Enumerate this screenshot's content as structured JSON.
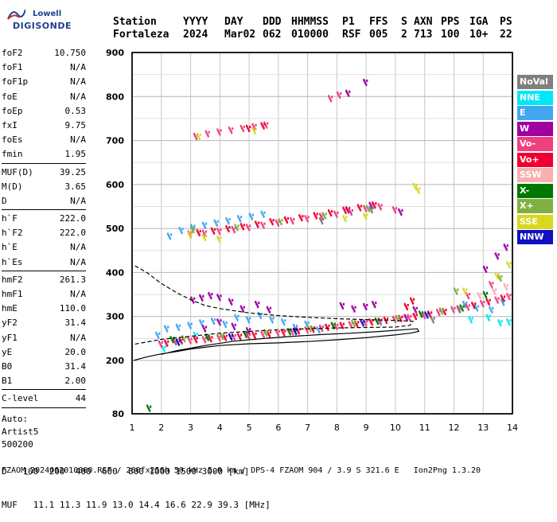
{
  "logo": {
    "line1": "Lowell",
    "line2": "DIGISONDE"
  },
  "header": {
    "col_labels": [
      "Station",
      "YYYY",
      "DAY",
      "DDD",
      "HHMMSS",
      "P1",
      "FFS",
      "S",
      "AXN",
      "PPS",
      "IGA",
      "PS"
    ],
    "col_values": [
      "Fortaleza",
      "2024",
      "Mar02",
      "062",
      "010000",
      "RSF",
      "005",
      "2",
      "713",
      "100",
      "10+",
      "22"
    ]
  },
  "params": {
    "group1": [
      {
        "label": "foF2",
        "value": "10.750"
      },
      {
        "label": "foF1",
        "value": "N/A"
      },
      {
        "label": "foF1p",
        "value": "N/A"
      },
      {
        "label": "foE",
        "value": "N/A"
      },
      {
        "label": "foEp",
        "value": "0.53"
      },
      {
        "label": "fxI",
        "value": "9.75"
      },
      {
        "label": "foEs",
        "value": "N/A"
      },
      {
        "label": "fmin",
        "value": "1.95"
      }
    ],
    "group2": [
      {
        "label": "MUF(D)",
        "value": "39.25"
      },
      {
        "label": "M(D)",
        "value": "3.65"
      },
      {
        "label": "D",
        "value": "N/A"
      }
    ],
    "group3": [
      {
        "label": "h`F",
        "value": "222.0"
      },
      {
        "label": "h`F2",
        "value": "222.0"
      },
      {
        "label": "h`E",
        "value": "N/A"
      },
      {
        "label": "h`Es",
        "value": "N/A"
      }
    ],
    "group4": [
      {
        "label": "hmF2",
        "value": "261.3"
      },
      {
        "label": "hmF1",
        "value": "N/A"
      },
      {
        "label": "hmE",
        "value": "110.0"
      },
      {
        "label": "yF2",
        "value": "31.4"
      },
      {
        "label": "yF1",
        "value": "N/A"
      },
      {
        "label": "yE",
        "value": "20.0"
      },
      {
        "label": "B0",
        "value": "31.4"
      },
      {
        "label": "B1",
        "value": "2.00"
      }
    ],
    "c_level": {
      "label": "C-level",
      "value": "44"
    },
    "auto_label": "Auto:",
    "autoscaler": "Artist5",
    "autoscaler_version": "500200"
  },
  "legend": [
    {
      "label": "NoVal",
      "color": "#808080"
    },
    {
      "label": "NNE",
      "color": "#00e8f8"
    },
    {
      "label": "E",
      "color": "#40a8f0"
    },
    {
      "label": "W",
      "color": "#a000a0"
    },
    {
      "label": "Vo-",
      "color": "#f04080"
    },
    {
      "label": "Vo+",
      "color": "#f00030"
    },
    {
      "label": "SSW",
      "color": "#f8b0b0"
    },
    {
      "label": "X-",
      "color": "#007800"
    },
    {
      "label": "X+",
      "color": "#80b040"
    },
    {
      "label": "SSE",
      "color": "#d8d820"
    },
    {
      "label": "NNW",
      "color": "#1010c0"
    }
  ],
  "bottom": {
    "d_label": "D",
    "d_values": [
      "100",
      "200",
      "400",
      "600",
      "800",
      "1000",
      "1500",
      "3000"
    ],
    "d_unit": "[km]",
    "muf_label": "MUF",
    "muf_values": [
      "11.1",
      "11.3",
      "11.9",
      "13.0",
      "14.4",
      "16.6",
      "22.9",
      "39.3"
    ],
    "muf_unit": "[MHz]"
  },
  "footer": "FZAOM_2024062010000.RSF / 260fx256h 50 kHz 5.0 km / DPS-4 FZAOM 904 / 3.9 S 321.6 E   Ion2Png 1.3.20",
  "chart_data": {
    "type": "scatter",
    "x_ticks": [
      "1",
      "2",
      "3",
      "4",
      "5",
      "6",
      "7",
      "8",
      "9",
      "10",
      "11",
      "12",
      "13",
      "14"
    ],
    "y_ticks": [
      "80",
      "200",
      "300",
      "400",
      "500",
      "600",
      "700",
      "800",
      "900"
    ],
    "xlim": [
      1,
      14
    ],
    "ylim": [
      80,
      900
    ],
    "grid": true,
    "series": [
      {
        "name": "NNE",
        "color": "#00e8f8",
        "points": [
          [
            2.1,
            230
          ],
          [
            2.5,
            246
          ],
          [
            3.2,
            260
          ],
          [
            12.6,
            295
          ],
          [
            13.2,
            300
          ],
          [
            13.6,
            288
          ],
          [
            13.9,
            290
          ]
        ]
      },
      {
        "name": "E",
        "color": "#40a8f0",
        "points": [
          [
            1.9,
            260
          ],
          [
            2.2,
            275
          ],
          [
            2.6,
            278
          ],
          [
            3.0,
            282
          ],
          [
            3.4,
            288
          ],
          [
            3.8,
            292
          ],
          [
            4.2,
            285
          ],
          [
            4.6,
            300
          ],
          [
            5.0,
            295
          ],
          [
            5.4,
            305
          ],
          [
            5.8,
            295
          ],
          [
            6.2,
            290
          ],
          [
            6.6,
            278
          ],
          [
            7.0,
            285
          ],
          [
            7.4,
            272
          ],
          [
            2.3,
            485
          ],
          [
            2.7,
            498
          ],
          [
            3.1,
            505
          ],
          [
            3.5,
            510
          ],
          [
            3.9,
            515
          ],
          [
            4.3,
            520
          ],
          [
            4.7,
            525
          ],
          [
            5.1,
            530
          ],
          [
            5.5,
            535
          ],
          [
            9.5,
            290
          ],
          [
            12.4,
            330
          ],
          [
            12.8,
            322
          ],
          [
            13.3,
            318
          ],
          [
            13.7,
            335
          ]
        ]
      },
      {
        "name": "W",
        "color": "#a000a0",
        "points": [
          [
            3.1,
            340
          ],
          [
            3.4,
            345
          ],
          [
            3.7,
            350
          ],
          [
            4.0,
            346
          ],
          [
            4.4,
            336
          ],
          [
            4.8,
            320
          ],
          [
            5.3,
            330
          ],
          [
            5.7,
            318
          ],
          [
            8.2,
            327
          ],
          [
            8.6,
            320
          ],
          [
            9.0,
            325
          ],
          [
            9.3,
            330
          ],
          [
            10.4,
            300
          ],
          [
            10.7,
            318
          ],
          [
            3.5,
            275
          ],
          [
            4.0,
            290
          ],
          [
            4.5,
            280
          ],
          [
            5.0,
            270
          ],
          [
            7.5,
            530
          ],
          [
            8.4,
            545
          ],
          [
            9.2,
            555
          ],
          [
            10.2,
            540
          ],
          [
            13.1,
            410
          ],
          [
            13.5,
            440
          ],
          [
            13.8,
            460
          ],
          [
            9.0,
            835
          ],
          [
            8.4,
            810
          ]
        ]
      },
      {
        "name": "Vo-",
        "color": "#f04080",
        "points": [
          [
            2.0,
            240
          ],
          [
            2.5,
            245
          ],
          [
            3.0,
            248
          ],
          [
            3.5,
            250
          ],
          [
            4.0,
            254
          ],
          [
            4.5,
            256
          ],
          [
            5.0,
            258
          ],
          [
            5.5,
            262
          ],
          [
            6.0,
            265
          ],
          [
            6.5,
            268
          ],
          [
            7.0,
            272
          ],
          [
            7.5,
            276
          ],
          [
            8.0,
            280
          ],
          [
            8.5,
            284
          ],
          [
            9.0,
            288
          ],
          [
            9.5,
            292
          ],
          [
            10.0,
            296
          ],
          [
            10.5,
            300
          ],
          [
            11.0,
            305
          ],
          [
            11.5,
            312
          ],
          [
            12.0,
            318
          ],
          [
            12.5,
            324
          ],
          [
            13.0,
            332
          ],
          [
            13.5,
            340
          ],
          [
            13.9,
            348
          ],
          [
            3.0,
            490
          ],
          [
            3.5,
            492
          ],
          [
            4.0,
            496
          ],
          [
            4.5,
            500
          ],
          [
            5.0,
            505
          ],
          [
            5.5,
            510
          ],
          [
            6.0,
            515
          ],
          [
            6.5,
            520
          ],
          [
            7.0,
            525
          ],
          [
            7.5,
            530
          ],
          [
            8.0,
            535
          ],
          [
            8.5,
            540
          ],
          [
            9.0,
            548
          ],
          [
            9.5,
            552
          ],
          [
            10.0,
            545
          ],
          [
            3.2,
            712
          ],
          [
            3.6,
            718
          ],
          [
            4.0,
            722
          ],
          [
            4.4,
            726
          ],
          [
            4.8,
            730
          ],
          [
            5.2,
            734
          ],
          [
            5.6,
            738
          ],
          [
            7.8,
            798
          ],
          [
            8.1,
            806
          ],
          [
            12.5,
            350
          ],
          [
            13.3,
            375
          ]
        ]
      },
      {
        "name": "Vo+",
        "color": "#f00030",
        "points": [
          [
            2.2,
            242
          ],
          [
            2.7,
            247
          ],
          [
            3.2,
            250
          ],
          [
            3.7,
            252
          ],
          [
            4.2,
            255
          ],
          [
            4.7,
            257
          ],
          [
            5.2,
            260
          ],
          [
            5.7,
            263
          ],
          [
            6.2,
            266
          ],
          [
            6.7,
            270
          ],
          [
            7.2,
            274
          ],
          [
            7.7,
            278
          ],
          [
            8.2,
            282
          ],
          [
            8.7,
            286
          ],
          [
            9.2,
            290
          ],
          [
            9.7,
            294
          ],
          [
            10.2,
            298
          ],
          [
            10.7,
            303
          ],
          [
            11.2,
            308
          ],
          [
            11.7,
            314
          ],
          [
            12.2,
            320
          ],
          [
            12.7,
            328
          ],
          [
            13.2,
            336
          ],
          [
            13.7,
            344
          ],
          [
            3.3,
            493
          ],
          [
            3.8,
            497
          ],
          [
            4.3,
            502
          ],
          [
            4.8,
            507
          ],
          [
            5.3,
            512
          ],
          [
            5.8,
            518
          ],
          [
            6.3,
            522
          ],
          [
            6.8,
            527
          ],
          [
            7.3,
            532
          ],
          [
            7.8,
            538
          ],
          [
            8.3,
            544
          ],
          [
            8.8,
            550
          ],
          [
            9.3,
            556
          ],
          [
            10.4,
            325
          ],
          [
            10.6,
            338
          ],
          [
            5.0,
            730
          ],
          [
            5.5,
            736
          ]
        ]
      },
      {
        "name": "SSW",
        "color": "#f8b0b0",
        "points": [
          [
            12.9,
            350
          ],
          [
            13.4,
            360
          ],
          [
            13.8,
            370
          ]
        ]
      },
      {
        "name": "X-",
        "color": "#007800",
        "points": [
          [
            1.6,
            95
          ],
          [
            2.4,
            250
          ],
          [
            3.6,
            255
          ],
          [
            4.9,
            262
          ],
          [
            6.4,
            268
          ],
          [
            7.9,
            282
          ],
          [
            9.4,
            292
          ],
          [
            10.9,
            308
          ],
          [
            12.3,
            322
          ],
          [
            13.1,
            352
          ]
        ]
      },
      {
        "name": "X+",
        "color": "#80b040",
        "points": [
          [
            2.8,
            252
          ],
          [
            4.1,
            258
          ],
          [
            5.6,
            265
          ],
          [
            7.1,
            275
          ],
          [
            8.6,
            287
          ],
          [
            10.1,
            298
          ],
          [
            11.6,
            315
          ],
          [
            12.1,
            360
          ],
          [
            13.6,
            390
          ],
          [
            3.1,
            500
          ],
          [
            4.6,
            505
          ],
          [
            6.1,
            518
          ],
          [
            7.6,
            532
          ],
          [
            9.1,
            548
          ]
        ]
      },
      {
        "name": "SSE",
        "color": "#d8d820",
        "points": [
          [
            3.0,
            487
          ],
          [
            3.5,
            482
          ],
          [
            4.0,
            478
          ],
          [
            8.3,
            525
          ],
          [
            9.0,
            530
          ],
          [
            10.8,
            590
          ],
          [
            10.7,
            598
          ],
          [
            12.4,
            360
          ],
          [
            13.5,
            395
          ],
          [
            13.9,
            420
          ],
          [
            3.3,
            712
          ],
          [
            5.2,
            725
          ]
        ]
      },
      {
        "name": "NNW",
        "color": "#1010c0",
        "points": [
          [
            2.6,
            244
          ],
          [
            4.4,
            256
          ],
          [
            6.6,
            269
          ],
          [
            8.9,
            288
          ],
          [
            11.1,
            306
          ]
        ]
      },
      {
        "name": "NoVal",
        "color": "#808080",
        "points": [
          [
            7.5,
            520
          ],
          [
            9.2,
            545
          ],
          [
            11.3,
            295
          ],
          [
            12.2,
            318
          ]
        ]
      }
    ],
    "profile_curve": [
      [
        1.05,
        200
      ],
      [
        1.5,
        208
      ],
      [
        2.0,
        215
      ],
      [
        2.5,
        220
      ],
      [
        3.0,
        226
      ],
      [
        3.5,
        230
      ],
      [
        4.0,
        234
      ],
      [
        5.0,
        238
      ],
      [
        6.0,
        240
      ],
      [
        7.0,
        243
      ],
      [
        8.0,
        247
      ],
      [
        9.0,
        252
      ],
      [
        10.0,
        258
      ],
      [
        10.5,
        262
      ],
      [
        10.8,
        266
      ],
      [
        10.75,
        272
      ],
      [
        10.3,
        270
      ],
      [
        9.5,
        266
      ],
      [
        8.5,
        262
      ],
      [
        7.5,
        259
      ],
      [
        6.5,
        255
      ],
      [
        5.5,
        250
      ],
      [
        4.5,
        244
      ],
      [
        3.5,
        234
      ],
      [
        2.5,
        222
      ],
      [
        2.0,
        214
      ]
    ],
    "dashed_curve": [
      [
        1.1,
        415
      ],
      [
        1.5,
        400
      ],
      [
        2.0,
        375
      ],
      [
        2.5,
        355
      ],
      [
        3.0,
        338
      ],
      [
        3.5,
        325
      ],
      [
        4.0,
        318
      ],
      [
        5.0,
        308
      ],
      [
        6.0,
        302
      ],
      [
        7.0,
        298
      ],
      [
        8.0,
        295
      ],
      [
        9.0,
        293
      ],
      [
        10.0,
        291
      ],
      [
        10.6,
        289
      ],
      [
        10.5,
        280
      ],
      [
        10.0,
        276
      ],
      [
        9.0,
        275
      ],
      [
        8.0,
        274
      ],
      [
        7.0,
        272
      ],
      [
        6.0,
        270
      ],
      [
        5.0,
        266
      ],
      [
        4.0,
        262
      ],
      [
        3.0,
        255
      ],
      [
        2.0,
        248
      ],
      [
        1.5,
        242
      ],
      [
        1.0,
        236
      ]
    ]
  }
}
